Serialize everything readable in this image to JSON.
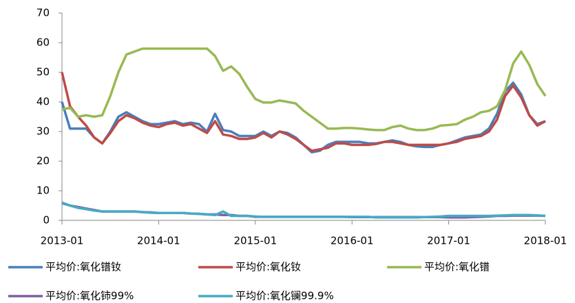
{
  "chart_data": {
    "type": "line",
    "categories": [
      "2013-01",
      null,
      null,
      null,
      null,
      null,
      null,
      null,
      null,
      null,
      null,
      null,
      "2014-01",
      null,
      null,
      null,
      null,
      null,
      null,
      null,
      null,
      null,
      null,
      null,
      "2015-01",
      null,
      null,
      null,
      null,
      null,
      null,
      null,
      null,
      null,
      null,
      null,
      "2016-01",
      null,
      null,
      null,
      null,
      null,
      null,
      null,
      null,
      null,
      null,
      null,
      "2017-01",
      null,
      null,
      null,
      null,
      null,
      null,
      null,
      null,
      null,
      null,
      null,
      "2018-01"
    ],
    "ylim": [
      0,
      70
    ],
    "yticks": [
      0,
      10,
      20,
      30,
      40,
      50,
      60,
      70
    ],
    "grid": false,
    "legend": "bottom",
    "series": [
      {
        "name": "平均价:氧化镨钕",
        "color": "#4a7ebb",
        "values": [
          40,
          31,
          31,
          31,
          28,
          26,
          30,
          35,
          36.5,
          35,
          33.5,
          32.5,
          32.5,
          33,
          33.5,
          32.5,
          33,
          32.5,
          30,
          36,
          30.5,
          30,
          28.5,
          28.5,
          28.5,
          30,
          28.5,
          30,
          29.5,
          28,
          25.5,
          23,
          23.5,
          25.5,
          26.5,
          26.5,
          26.5,
          26.5,
          26,
          26,
          26.5,
          27,
          26.5,
          25.5,
          25,
          24.8,
          24.8,
          25.5,
          26,
          27,
          28,
          28.5,
          29,
          31,
          36,
          43.5,
          46.5,
          42.5,
          35.5,
          32.5,
          33.5
        ]
      },
      {
        "name": "平均价:氧化钕",
        "color": "#be4b48",
        "values": [
          50,
          38.5,
          35,
          32,
          28,
          26,
          29.5,
          33.5,
          35.5,
          34.5,
          33,
          32,
          31.5,
          32.5,
          33,
          32,
          32.5,
          31,
          29.5,
          33.5,
          29,
          28.5,
          27.5,
          27.5,
          28,
          29.5,
          28,
          30,
          29,
          27.5,
          25.5,
          23.5,
          24,
          24.5,
          26,
          26,
          25.5,
          25.5,
          25.5,
          25.8,
          26.5,
          26.5,
          26,
          25.5,
          25.5,
          25.5,
          25.5,
          25.5,
          26,
          26.5,
          27.5,
          28,
          28.5,
          30,
          34,
          42,
          45.5,
          41.5,
          35.5,
          32,
          33.5
        ]
      },
      {
        "name": "平均价:氧化镨",
        "color": "#98b954",
        "values": [
          37.5,
          38,
          35,
          35.5,
          35,
          35.5,
          42,
          50,
          56,
          57,
          58,
          58,
          58,
          58,
          58,
          58,
          58,
          58,
          58,
          55.5,
          50.5,
          52,
          49.5,
          45,
          41,
          39.8,
          39.8,
          40.5,
          40,
          39.5,
          37,
          35,
          33,
          31,
          31,
          31.2,
          31.2,
          31,
          30.7,
          30.5,
          30.5,
          31.5,
          32,
          31,
          30.5,
          30.5,
          31,
          32,
          32.2,
          32.5,
          34,
          35,
          36.5,
          37,
          38.5,
          44,
          53,
          57,
          52.5,
          46,
          42
        ]
      },
      {
        "name": "平均价:氧化铈99%",
        "color": "#7d60a0",
        "values": [
          5.8,
          5,
          4.5,
          4,
          3.5,
          3,
          3,
          3,
          3,
          3,
          2.8,
          2.7,
          2.5,
          2.5,
          2.5,
          2.5,
          2.3,
          2.2,
          2,
          2,
          1.8,
          1.8,
          1.5,
          1.5,
          1.2,
          1.2,
          1.2,
          1.2,
          1.2,
          1.2,
          1.2,
          1.2,
          1.2,
          1.2,
          1.2,
          1.2,
          1.1,
          1.1,
          1.1,
          1.1,
          1.1,
          1.1,
          1.1,
          1.1,
          1.1,
          1.1,
          1.1,
          1.1,
          1,
          1,
          1,
          1.1,
          1.2,
          1.3,
          1.5,
          1.5,
          1.6,
          1.6,
          1.6,
          1.6,
          1.5
        ]
      },
      {
        "name": "平均价:氧化镧99.9%",
        "color": "#46aac5",
        "values": [
          6,
          5,
          4.2,
          3.8,
          3.3,
          3,
          3,
          3,
          3,
          3,
          2.8,
          2.6,
          2.5,
          2.5,
          2.5,
          2.5,
          2.3,
          2.2,
          2,
          1.8,
          3,
          1.5,
          1.5,
          1.5,
          1.3,
          1.2,
          1.2,
          1.2,
          1.2,
          1.2,
          1.2,
          1.2,
          1.2,
          1.2,
          1.2,
          1.2,
          1.2,
          1.2,
          1.2,
          1,
          1,
          1,
          1,
          1,
          1,
          1.1,
          1.2,
          1.3,
          1.5,
          1.5,
          1.5,
          1.5,
          1.5,
          1.5,
          1.6,
          1.7,
          1.8,
          1.8,
          1.8,
          1.7,
          1.5
        ]
      }
    ]
  }
}
